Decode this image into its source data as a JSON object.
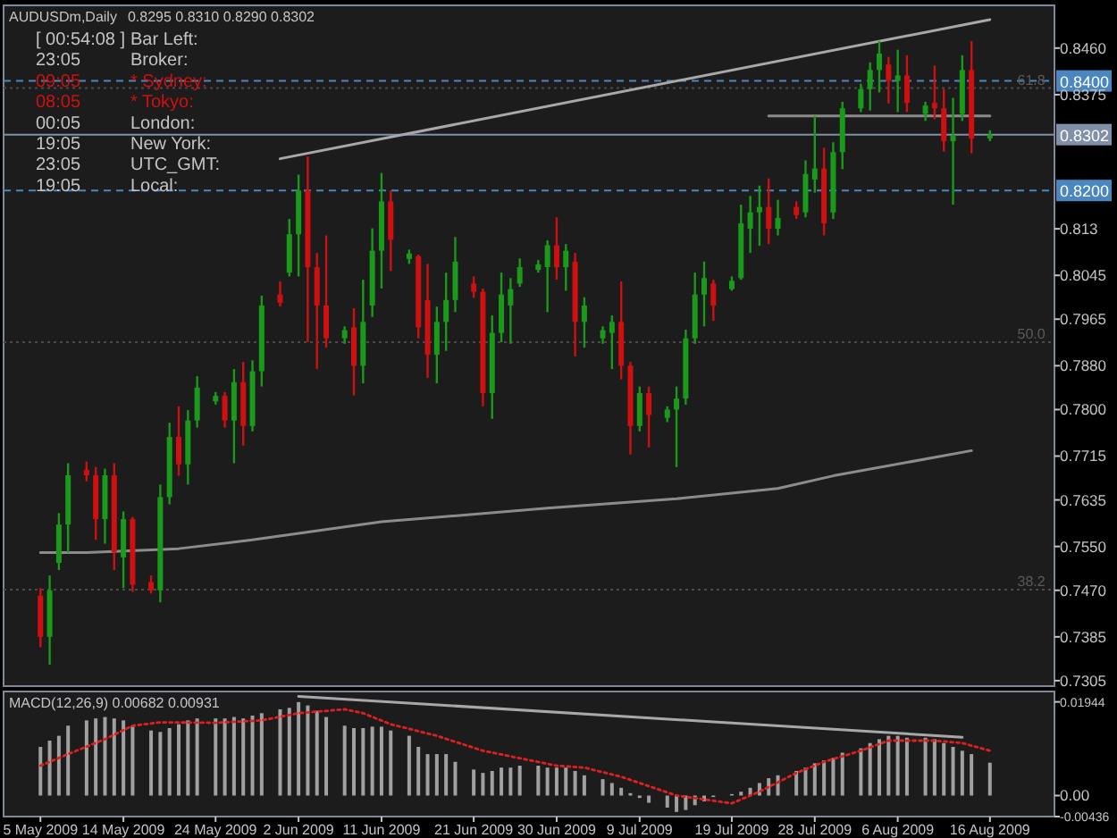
{
  "chart_data": [
    {
      "type": "candlestick",
      "title": "AUDUSDm,Daily",
      "subtitle": "0.8295 0.8310 0.8290 0.8302",
      "x": [
        "2009-05-05",
        "2009-05-06",
        "2009-05-07",
        "2009-05-08",
        "2009-05-10",
        "2009-05-11",
        "2009-05-12",
        "2009-05-13",
        "2009-05-14",
        "2009-05-15",
        "2009-05-17",
        "2009-05-18",
        "2009-05-19",
        "2009-05-20",
        "2009-05-21",
        "2009-05-22",
        "2009-05-24",
        "2009-05-25",
        "2009-05-26",
        "2009-05-27",
        "2009-05-28",
        "2009-05-29",
        "2009-05-31",
        "2009-06-01",
        "2009-06-02",
        "2009-06-03",
        "2009-06-04",
        "2009-06-05",
        "2009-06-07",
        "2009-06-08",
        "2009-06-09",
        "2009-06-10",
        "2009-06-11",
        "2009-06-12",
        "2009-06-14",
        "2009-06-15",
        "2009-06-16",
        "2009-06-17",
        "2009-06-18",
        "2009-06-19",
        "2009-06-21",
        "2009-06-22",
        "2009-06-23",
        "2009-06-24",
        "2009-06-25",
        "2009-06-26",
        "2009-06-28",
        "2009-06-29",
        "2009-06-30",
        "2009-07-01",
        "2009-07-02",
        "2009-07-03",
        "2009-07-05",
        "2009-07-06",
        "2009-07-07",
        "2009-07-08",
        "2009-07-09",
        "2009-07-10",
        "2009-07-12",
        "2009-07-13",
        "2009-07-14",
        "2009-07-15",
        "2009-07-16",
        "2009-07-17",
        "2009-07-19",
        "2009-07-20",
        "2009-07-21",
        "2009-07-22",
        "2009-07-23",
        "2009-07-24",
        "2009-07-26",
        "2009-07-27",
        "2009-07-28",
        "2009-07-29",
        "2009-07-30",
        "2009-07-31",
        "2009-08-02",
        "2009-08-03",
        "2009-08-04",
        "2009-08-05",
        "2009-08-06",
        "2009-08-07",
        "2009-08-09",
        "2009-08-10",
        "2009-08-11",
        "2009-08-12",
        "2009-08-13",
        "2009-08-14",
        "2009-08-16"
      ],
      "ohlc": [
        [
          0.746,
          0.7474,
          0.7366,
          0.7385
        ],
        [
          0.7385,
          0.7497,
          0.7334,
          0.747
        ],
        [
          0.752,
          0.7611,
          0.7507,
          0.759
        ],
        [
          0.759,
          0.7702,
          0.7539,
          0.768
        ],
        [
          0.769,
          0.7705,
          0.7669,
          0.768
        ],
        [
          0.768,
          0.7695,
          0.7562,
          0.76
        ],
        [
          0.76,
          0.7692,
          0.7555,
          0.768
        ],
        [
          0.768,
          0.7702,
          0.7507,
          0.754
        ],
        [
          0.753,
          0.7614,
          0.7474,
          0.76
        ],
        [
          0.76,
          0.7604,
          0.7467,
          0.748
        ],
        [
          0.7485,
          0.7497,
          0.7464,
          0.747
        ],
        [
          0.747,
          0.7663,
          0.7448,
          0.764
        ],
        [
          0.764,
          0.7776,
          0.7627,
          0.775
        ],
        [
          0.775,
          0.7806,
          0.7679,
          0.77
        ],
        [
          0.77,
          0.7799,
          0.7663,
          0.778
        ],
        [
          0.778,
          0.7861,
          0.7767,
          0.784
        ],
        [
          0.7815,
          0.7832,
          0.7809,
          0.7825
        ],
        [
          0.7825,
          0.7832,
          0.7767,
          0.778
        ],
        [
          0.778,
          0.7874,
          0.7702,
          0.785
        ],
        [
          0.785,
          0.7887,
          0.7734,
          0.777
        ],
        [
          0.777,
          0.789,
          0.776,
          0.787
        ],
        [
          0.787,
          0.8008,
          0.7842,
          0.799
        ],
        [
          0.801,
          0.8034,
          0.7988,
          0.7995
        ],
        [
          0.805,
          0.8148,
          0.8043,
          0.812
        ],
        [
          0.812,
          0.8229,
          0.8043,
          0.82
        ],
        [
          0.82,
          0.8262,
          0.7923,
          0.806
        ],
        [
          0.806,
          0.8086,
          0.7874,
          0.799
        ],
        [
          0.799,
          0.8118,
          0.7913,
          0.793
        ],
        [
          0.793,
          0.7952,
          0.792,
          0.7945
        ],
        [
          0.795,
          0.7985,
          0.7826,
          0.788
        ],
        [
          0.788,
          0.8037,
          0.7848,
          0.796
        ],
        [
          0.799,
          0.8131,
          0.7969,
          0.809
        ],
        [
          0.809,
          0.8232,
          0.8021,
          0.818
        ],
        [
          0.818,
          0.82,
          0.8053,
          0.811
        ],
        [
          0.8075,
          0.8092,
          0.8066,
          0.8085
        ],
        [
          0.808,
          0.8083,
          0.793,
          0.795
        ],
        [
          0.8,
          0.8066,
          0.7858,
          0.79
        ],
        [
          0.79,
          0.7988,
          0.7848,
          0.796
        ],
        [
          0.796,
          0.805,
          0.7907,
          0.8
        ],
        [
          0.8,
          0.8115,
          0.7978,
          0.807
        ],
        [
          0.803,
          0.8043,
          0.8004,
          0.8015
        ],
        [
          0.8015,
          0.8021,
          0.7806,
          0.783
        ],
        [
          0.783,
          0.7972,
          0.7783,
          0.794
        ],
        [
          0.794,
          0.805,
          0.7923,
          0.801
        ],
        [
          0.799,
          0.804,
          0.792,
          0.802
        ],
        [
          0.803,
          0.8076,
          0.8024,
          0.806
        ],
        [
          0.8055,
          0.8073,
          0.805,
          0.8065
        ],
        [
          0.806,
          0.8109,
          0.7978,
          0.81
        ],
        [
          0.81,
          0.8151,
          0.8037,
          0.806
        ],
        [
          0.806,
          0.8102,
          0.8017,
          0.809
        ],
        [
          0.807,
          0.8086,
          0.7897,
          0.796
        ],
        [
          0.796,
          0.8005,
          0.7913,
          0.799
        ],
        [
          0.793,
          0.7952,
          0.792,
          0.7945
        ],
        [
          0.794,
          0.7972,
          0.7874,
          0.796
        ],
        [
          0.796,
          0.8034,
          0.7855,
          0.788
        ],
        [
          0.788,
          0.7887,
          0.7718,
          0.777
        ],
        [
          0.777,
          0.7842,
          0.776,
          0.783
        ],
        [
          0.783,
          0.7842,
          0.7731,
          0.779
        ],
        [
          0.7785,
          0.7806,
          0.7777,
          0.78
        ],
        [
          0.78,
          0.7842,
          0.7695,
          0.782
        ],
        [
          0.782,
          0.7946,
          0.7809,
          0.793
        ],
        [
          0.793,
          0.805,
          0.792,
          0.801
        ],
        [
          0.801,
          0.807,
          0.7952,
          0.804
        ],
        [
          0.803,
          0.8037,
          0.7962,
          0.799
        ],
        [
          0.802,
          0.8043,
          0.8017,
          0.8035
        ],
        [
          0.804,
          0.8174,
          0.8037,
          0.814
        ],
        [
          0.813,
          0.819,
          0.8086,
          0.816
        ],
        [
          0.816,
          0.8209,
          0.8099,
          0.817
        ],
        [
          0.817,
          0.8222,
          0.8102,
          0.813
        ],
        [
          0.813,
          0.8183,
          0.8118,
          0.815
        ],
        [
          0.817,
          0.818,
          0.8148,
          0.8155
        ],
        [
          0.816,
          0.8255,
          0.8151,
          0.823
        ],
        [
          0.822,
          0.8336,
          0.8196,
          0.824
        ],
        [
          0.824,
          0.8278,
          0.8118,
          0.814
        ],
        [
          0.816,
          0.8288,
          0.8148,
          0.827
        ],
        [
          0.827,
          0.8362,
          0.8239,
          0.835
        ],
        [
          0.835,
          0.8395,
          0.8343,
          0.8385
        ],
        [
          0.8385,
          0.8434,
          0.8346,
          0.842
        ],
        [
          0.842,
          0.8473,
          0.8379,
          0.845
        ],
        [
          0.843,
          0.8444,
          0.8359,
          0.84
        ],
        [
          0.84,
          0.8457,
          0.8343,
          0.841
        ],
        [
          0.841,
          0.8447,
          0.8343,
          0.836
        ],
        [
          0.834,
          0.8362,
          0.8327,
          0.8355
        ],
        [
          0.836,
          0.8428,
          0.833,
          0.835
        ],
        [
          0.835,
          0.8385,
          0.8271,
          0.829
        ],
        [
          0.829,
          0.8369,
          0.8174,
          0.83
        ],
        [
          0.834,
          0.8447,
          0.8327,
          0.842
        ],
        [
          0.842,
          0.8473,
          0.8268,
          0.8295
        ],
        [
          0.8295,
          0.831,
          0.829,
          0.8302
        ]
      ],
      "colors": [
        "#d01010",
        "#1a9a1a",
        "#1a9a1a",
        "#1a9a1a",
        "#d01010",
        "#d01010",
        "#1a9a1a",
        "#d01010",
        "#1a9a1a",
        "#d01010",
        "#d01010",
        "#1a9a1a",
        "#1a9a1a",
        "#d01010",
        "#1a9a1a",
        "#1a9a1a",
        "#1a9a1a",
        "#d01010",
        "#1a9a1a",
        "#d01010",
        "#1a9a1a",
        "#1a9a1a",
        "#d01010",
        "#1a9a1a",
        "#1a9a1a",
        "#d01010",
        "#d01010",
        "#d01010",
        "#1a9a1a",
        "#d01010",
        "#1a9a1a",
        "#1a9a1a",
        "#1a9a1a",
        "#d01010",
        "#1a9a1a",
        "#d01010",
        "#d01010",
        "#1a9a1a",
        "#1a9a1a",
        "#1a9a1a",
        "#d01010",
        "#d01010",
        "#1a9a1a",
        "#1a9a1a",
        "#1a9a1a",
        "#1a9a1a",
        "#1a9a1a",
        "#1a9a1a",
        "#d01010",
        "#1a9a1a",
        "#d01010",
        "#1a9a1a",
        "#1a9a1a",
        "#1a9a1a",
        "#d01010",
        "#d01010",
        "#1a9a1a",
        "#d01010",
        "#1a9a1a",
        "#1a9a1a",
        "#1a9a1a",
        "#1a9a1a",
        "#1a9a1a",
        "#d01010",
        "#1a9a1a",
        "#1a9a1a",
        "#1a9a1a",
        "#1a9a1a",
        "#d01010",
        "#1a9a1a",
        "#d01010",
        "#1a9a1a",
        "#1a9a1a",
        "#d01010",
        "#1a9a1a",
        "#1a9a1a",
        "#1a9a1a",
        "#1a9a1a",
        "#1a9a1a",
        "#d01010",
        "#1a9a1a",
        "#d01010",
        "#1a9a1a",
        "#d01010",
        "#d01010",
        "#1a9a1a",
        "#1a9a1a",
        "#d01010",
        "#1a9a1a"
      ],
      "series": [
        {
          "type": "line",
          "color": "#8c8c8c",
          "x": [
            "2009-05-05",
            "2009-05-10",
            "2009-05-20",
            "2009-05-28",
            "2009-06-11",
            "2009-06-29",
            "2009-07-13",
            "2009-07-24",
            "2009-07-30",
            "2009-08-14"
          ],
          "values": [
            0.7539,
            0.7539,
            0.7546,
            0.7562,
            0.7595,
            0.762,
            0.7637,
            0.7656,
            0.7679,
            0.7725
          ]
        },
        {
          "type": "line",
          "color": "#a8a8a8",
          "x": [
            "2009-05-31",
            "2009-08-16"
          ],
          "values": [
            0.8258,
            0.8512
          ]
        },
        {
          "type": "line",
          "color": "#8a8a8a",
          "x": [
            "2009-07-23",
            "2009-08-16"
          ],
          "values": [
            0.8336,
            0.8336
          ]
        }
      ],
      "xlim": [
        "2009-05-01",
        "2009-08-23"
      ],
      "tick_labels": "y",
      "ylim": [
        0.7295,
        0.8538
      ],
      "yticks": [
        {
          "value": 0.846,
          "label": "0.8460"
        },
        0.8375,
        0.813,
        0.8045,
        0.7965,
        {
          "value": 0.788,
          "label": "0.7880"
        },
        {
          "value": 0.78,
          "label": "0.7800"
        },
        0.7715,
        0.7635,
        {
          "value": 0.755,
          "label": "0.7550"
        },
        {
          "value": 0.747,
          "label": "0.7470"
        },
        0.7385,
        0.7305
      ],
      "ref_lines": [
        {
          "axis": "y",
          "value": 0.84,
          "label": "0.8400",
          "color": "#4a86c0",
          "line_style": "dashed"
        },
        {
          "axis": "y",
          "value": 0.8302,
          "label": "0.8302",
          "color": "#8090a8",
          "line_style": "solid"
        },
        {
          "axis": "y",
          "value": 0.82,
          "label": "0.8200",
          "color": "#4a86c0",
          "line_style": "dashed"
        },
        {
          "axis": "y",
          "value": 0.8387,
          "color": "#4a4a4a",
          "line_style": "dotted"
        },
        {
          "axis": "y",
          "value": 0.7923,
          "color": "#4a4a4a",
          "line_style": "dotted"
        },
        {
          "axis": "y",
          "value": 0.7471,
          "color": "#4a4a4a",
          "line_style": "dotted"
        }
      ],
      "annotations": [
        {
          "text": "61.8",
          "x": "2009-08-22",
          "y": 0.8387
        },
        {
          "text": "50.0",
          "x": "2009-08-22",
          "y": 0.7923
        },
        {
          "text": "38.2",
          "x": "2009-08-22",
          "y": 0.7471
        },
        "[ 00:54:08 ]",
        "Bar Left:",
        "23:05",
        "Broker:",
        "09:05",
        "* Sydney:",
        "08:05",
        "* Tokyo:",
        "00:05",
        "London:",
        "19:05",
        "New York:",
        "23:05",
        "UTC_GMT:",
        "19:05",
        "Local:"
      ]
    },
    {
      "type": "bar",
      "title": "MACD(12,26,9) 0.00682 0.00931",
      "x": [
        "2009-05-05",
        "2009-05-06",
        "2009-05-07",
        "2009-05-08",
        "2009-05-10",
        "2009-05-11",
        "2009-05-12",
        "2009-05-13",
        "2009-05-14",
        "2009-05-15",
        "2009-05-17",
        "2009-05-18",
        "2009-05-19",
        "2009-05-20",
        "2009-05-21",
        "2009-05-22",
        "2009-05-24",
        "2009-05-25",
        "2009-05-26",
        "2009-05-27",
        "2009-05-28",
        "2009-05-29",
        "2009-05-31",
        "2009-06-01",
        "2009-06-02",
        "2009-06-03",
        "2009-06-04",
        "2009-06-05",
        "2009-06-07",
        "2009-06-08",
        "2009-06-09",
        "2009-06-10",
        "2009-06-11",
        "2009-06-12",
        "2009-06-14",
        "2009-06-15",
        "2009-06-16",
        "2009-06-17",
        "2009-06-18",
        "2009-06-19",
        "2009-06-21",
        "2009-06-22",
        "2009-06-23",
        "2009-06-24",
        "2009-06-25",
        "2009-06-26",
        "2009-06-28",
        "2009-06-29",
        "2009-06-30",
        "2009-07-01",
        "2009-07-02",
        "2009-07-03",
        "2009-07-05",
        "2009-07-06",
        "2009-07-07",
        "2009-07-08",
        "2009-07-09",
        "2009-07-10",
        "2009-07-12",
        "2009-07-13",
        "2009-07-14",
        "2009-07-15",
        "2009-07-16",
        "2009-07-17",
        "2009-07-19",
        "2009-07-20",
        "2009-07-21",
        "2009-07-22",
        "2009-07-23",
        "2009-07-24",
        "2009-07-26",
        "2009-07-27",
        "2009-07-28",
        "2009-07-29",
        "2009-07-30",
        "2009-07-31",
        "2009-08-02",
        "2009-08-03",
        "2009-08-04",
        "2009-08-05",
        "2009-08-06",
        "2009-08-07",
        "2009-08-09",
        "2009-08-10",
        "2009-08-11",
        "2009-08-12",
        "2009-08-13",
        "2009-08-14",
        "2009-08-16"
      ],
      "series": [
        {
          "type": "bar",
          "color": "#a0a0a0",
          "values": [
            0.0101,
            0.0114,
            0.0124,
            0.0145,
            0.0156,
            0.016,
            0.0163,
            0.016,
            0.0156,
            0.0145,
            0.0135,
            0.0132,
            0.014,
            0.0148,
            0.0156,
            0.016,
            0.016,
            0.016,
            0.0163,
            0.016,
            0.0166,
            0.0171,
            0.0179,
            0.0182,
            0.0194,
            0.0187,
            0.0176,
            0.0163,
            0.0145,
            0.014,
            0.014,
            0.0143,
            0.0143,
            0.0135,
            0.0124,
            0.0101,
            0.0086,
            0.0086,
            0.0086,
            0.007,
            0.0054,
            0.0047,
            0.0051,
            0.0058,
            0.0058,
            0.0062,
            0.0062,
            0.0058,
            0.0058,
            0.0058,
            0.0051,
            0.0042,
            0.0034,
            0.0026,
            0.0016,
            0.0005,
            -0.0005,
            -0.0015,
            -0.0025,
            -0.0034,
            -0.003,
            -0.002,
            -0.0012,
            -0.0003,
            0.0003,
            0.0008,
            0.0016,
            0.0026,
            0.0036,
            0.0042,
            0.0051,
            0.0058,
            0.0067,
            0.0073,
            0.0078,
            0.0089,
            0.0098,
            0.0109,
            0.0117,
            0.0124,
            0.0124,
            0.012,
            0.012,
            0.0117,
            0.0109,
            0.0101,
            0.0093,
            0.0086,
            0.00682
          ]
        },
        {
          "type": "line",
          "color": "#e02020",
          "line_style": "dotted",
          "x": [
            "2009-05-05",
            "2009-05-08",
            "2009-05-12",
            "2009-05-15",
            "2009-05-18",
            "2009-05-24",
            "2009-05-29",
            "2009-06-02",
            "2009-06-07",
            "2009-06-09",
            "2009-06-12",
            "2009-06-17",
            "2009-06-22",
            "2009-06-30",
            "2009-07-03",
            "2009-07-07",
            "2009-07-13",
            "2009-07-19",
            "2009-07-22",
            "2009-07-26",
            "2009-07-29",
            "2009-08-02",
            "2009-08-05",
            "2009-08-10",
            "2009-08-13",
            "2009-08-16"
          ],
          "values": [
            0.0062,
            0.0086,
            0.0117,
            0.0145,
            0.0152,
            0.0151,
            0.0156,
            0.0171,
            0.0179,
            0.0171,
            0.0148,
            0.0124,
            0.0093,
            0.0062,
            0.0058,
            0.0039,
            0,
            -0.0016,
            0.0008,
            0.0047,
            0.007,
            0.0093,
            0.0114,
            0.0114,
            0.0109,
            0.00931
          ]
        },
        {
          "type": "line",
          "color": "#a8a8a8",
          "x": [
            "2009-06-02",
            "2009-08-13"
          ],
          "values": [
            0.0206,
            0.0121
          ]
        }
      ],
      "xlim": [
        "2009-05-01",
        "2009-08-23"
      ],
      "xticks": [
        {
          "value": "2009-05-05",
          "label": "5 May 2009"
        },
        {
          "value": "2009-05-14",
          "label": "14 May 2009"
        },
        {
          "value": "2009-05-24",
          "label": "24 May 2009"
        },
        {
          "value": "2009-06-02",
          "label": "2 Jun 2009"
        },
        {
          "value": "2009-06-11",
          "label": "11 Jun 2009"
        },
        {
          "value": "2009-06-21",
          "label": "21 Jun 2009"
        },
        {
          "value": "2009-06-30",
          "label": "30 Jun 2009"
        },
        {
          "value": "2009-07-09",
          "label": "9 Jul 2009"
        },
        {
          "value": "2009-07-19",
          "label": "19 Jul 2009"
        },
        {
          "value": "2009-07-28",
          "label": "28 Jul 2009"
        },
        {
          "value": "2009-08-06",
          "label": "6 Aug 2009"
        },
        {
          "value": "2009-08-16",
          "label": "16 Aug 2009"
        }
      ],
      "ylim": [
        -0.00436,
        0.0216
      ],
      "yticks": [
        0.01944,
        {
          "value": 0,
          "label": "0.00"
        },
        -0.00436
      ]
    }
  ]
}
